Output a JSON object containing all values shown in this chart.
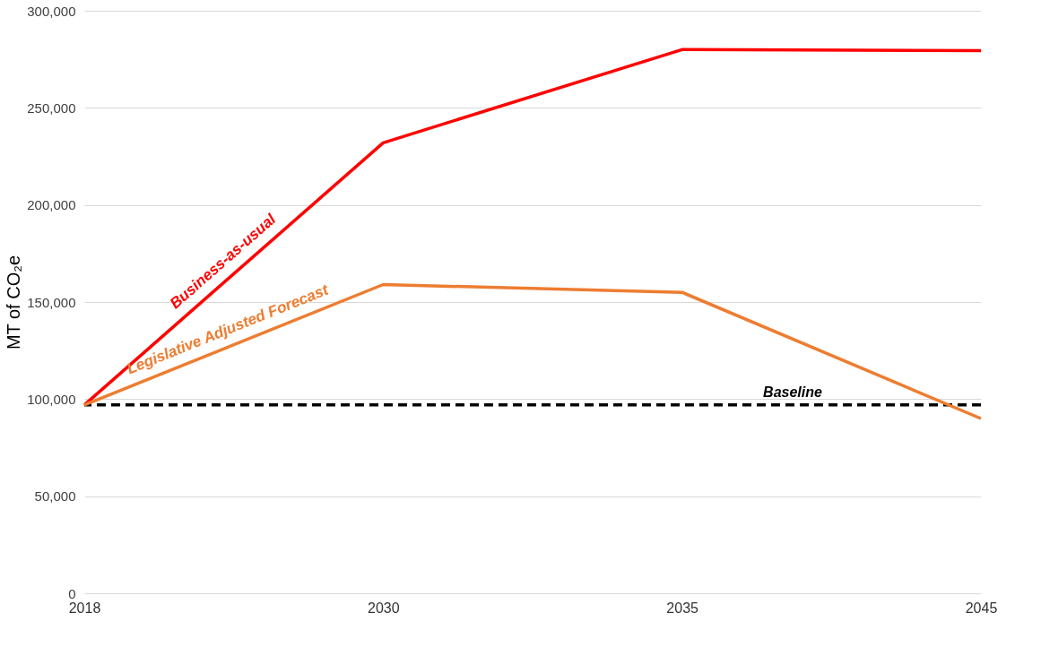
{
  "chart_data": {
    "type": "line",
    "ylabel": "MT of CO₂e",
    "categories": [
      "2018",
      "2030",
      "2035",
      "2045"
    ],
    "series": [
      {
        "name": "Business-as-usual",
        "color": "#ff0000",
        "values": [
          97000,
          232000,
          280000,
          279500
        ]
      },
      {
        "name": "Legislative Adjusted Forecast",
        "color": "#ed7d31",
        "values": [
          97000,
          159000,
          155000,
          90000
        ]
      }
    ],
    "ref_lines": [
      {
        "axis": "y",
        "value": 97000,
        "label": "Baseline",
        "color": "#000000",
        "line_style": "dashed"
      }
    ],
    "ylim": [
      0,
      300000
    ],
    "yticks": [
      0,
      {
        "value": 50000,
        "label": "50,000"
      },
      {
        "value": 100000,
        "label": "100,000"
      },
      {
        "value": 150000,
        "label": "150,000"
      },
      {
        "value": 200000,
        "label": "200,000"
      },
      {
        "value": 250000,
        "label": "250,000"
      },
      {
        "value": 300000,
        "label": "300,000"
      }
    ],
    "grid": "y",
    "line_style": "solid"
  }
}
